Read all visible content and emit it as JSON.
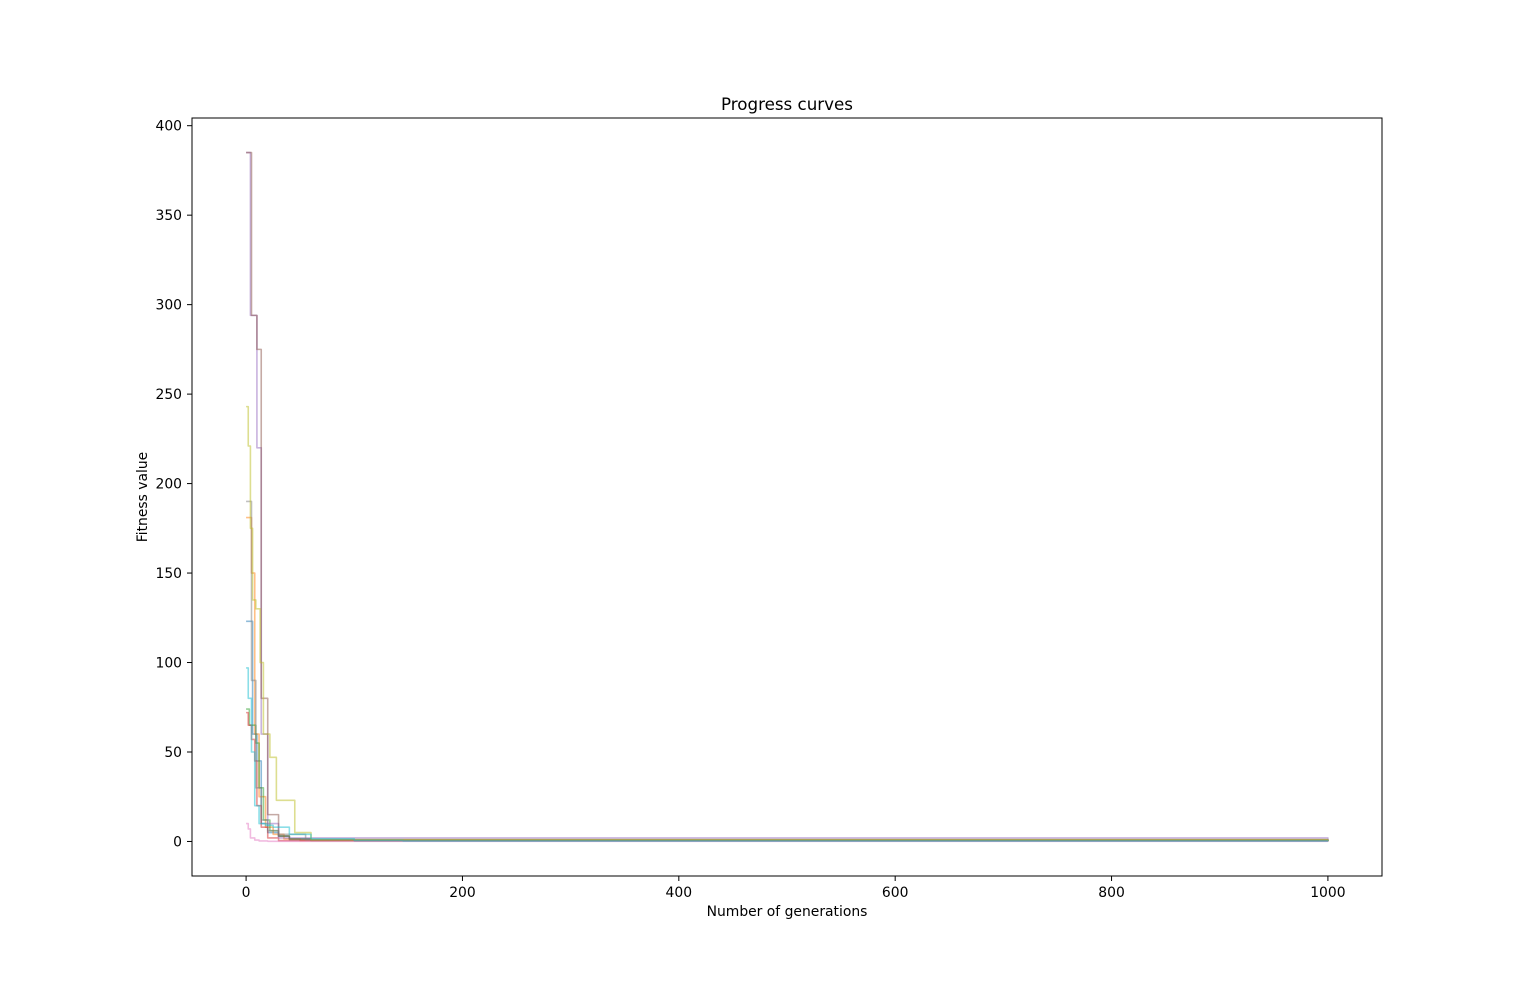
{
  "chart_data": {
    "type": "line",
    "title": "Progress curves",
    "xlabel": "Number of generations",
    "ylabel": "Fitness value",
    "xlim": [
      -50,
      1050
    ],
    "ylim": [
      -19.3,
      404.3
    ],
    "xticks": [
      0,
      200,
      400,
      600,
      800,
      1000
    ],
    "xtick_labels": [
      "0",
      "200",
      "400",
      "600",
      "800",
      "1000"
    ],
    "yticks": [
      0,
      50,
      100,
      150,
      200,
      250,
      300,
      350,
      400
    ],
    "ytick_labels": [
      "0",
      "50",
      "100",
      "150",
      "200",
      "250",
      "300",
      "350",
      "400"
    ],
    "grid": false,
    "legend": false,
    "series_opacity": 0.5,
    "series": [
      {
        "color": "#1f77b4",
        "x": [
          0,
          4,
          6,
          10,
          14,
          20,
          30,
          40,
          60,
          100,
          1000
        ],
        "y": [
          123,
          123,
          60,
          45,
          10,
          5,
          3,
          1.5,
          0.8,
          0.3,
          0.1
        ]
      },
      {
        "color": "#ff7f0e",
        "x": [
          0,
          3,
          5,
          8,
          12,
          18,
          25,
          35,
          50,
          1000
        ],
        "y": [
          181,
          181,
          150,
          60,
          25,
          8,
          4,
          1.5,
          0.5,
          0.1
        ]
      },
      {
        "color": "#2ca02c",
        "x": [
          0,
          3,
          6,
          9,
          12,
          16,
          22,
          30,
          40,
          60,
          1000
        ],
        "y": [
          74,
          65,
          65,
          55,
          30,
          12,
          6,
          3,
          1.5,
          0.5,
          0.2
        ]
      },
      {
        "color": "#d62728",
        "x": [
          0,
          2,
          5,
          8,
          10,
          14,
          20,
          30,
          1000
        ],
        "y": [
          72,
          65,
          57,
          45,
          20,
          8,
          2,
          0.5,
          0.1
        ]
      },
      {
        "color": "#9467bd",
        "x": [
          0,
          2,
          4,
          6,
          10,
          14,
          20,
          30,
          1000
        ],
        "y": [
          385,
          385,
          294,
          294,
          220,
          60,
          10,
          2,
          0.2
        ]
      },
      {
        "color": "#8c564b",
        "x": [
          0,
          3,
          5,
          8,
          10,
          14,
          20,
          30,
          40,
          1000
        ],
        "y": [
          385,
          385,
          294,
          294,
          275,
          80,
          15,
          3,
          1,
          0.1
        ]
      },
      {
        "color": "#e377c2",
        "x": [
          0,
          2,
          4,
          8,
          12,
          20,
          40,
          1000
        ],
        "y": [
          10,
          7,
          2,
          0.8,
          0.3,
          0.1,
          0.05,
          0.0
        ]
      },
      {
        "color": "#7f7f7f",
        "x": [
          0,
          2,
          5,
          9,
          14,
          20,
          30,
          40,
          55,
          1000
        ],
        "y": [
          190,
          190,
          90,
          30,
          12,
          6,
          4,
          4,
          1,
          0.2
        ]
      },
      {
        "color": "#bcbd22",
        "x": [
          0,
          2,
          4,
          6,
          9,
          13,
          16,
          22,
          28,
          34,
          45,
          60,
          1000
        ],
        "y": [
          243,
          221,
          175,
          135,
          130,
          100,
          60,
          47,
          23,
          23,
          5,
          1,
          0.2
        ]
      },
      {
        "color": "#17becf",
        "x": [
          0,
          2,
          5,
          8,
          12,
          18,
          25,
          40,
          60,
          100,
          145,
          1000
        ],
        "y": [
          97,
          80,
          50,
          20,
          10,
          9,
          8,
          4,
          1.5,
          0.6,
          0.3,
          0.1
        ]
      }
    ]
  }
}
